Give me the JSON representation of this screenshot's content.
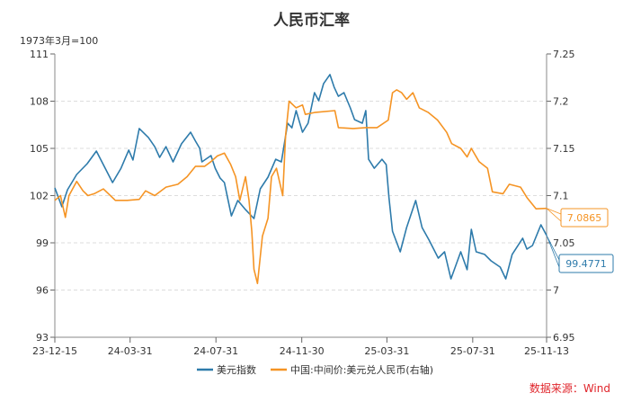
{
  "chart_data": {
    "type": "line",
    "title": "人民币汇率",
    "left_axis_label": "1973年3月=100",
    "source": "数据来源：Wind",
    "x_range": [
      "2023-12-15",
      "2025-11-13"
    ],
    "x_ticks": [
      "23-12-15",
      "24-03-31",
      "24-07-31",
      "24-11-30",
      "25-03-31",
      "25-07-31",
      "25-11-13"
    ],
    "x_tick_dates": [
      "2023-12-15",
      "2024-03-31",
      "2024-07-31",
      "2024-11-30",
      "2025-03-31",
      "2025-07-31",
      "2025-11-13"
    ],
    "left_ylim": [
      93,
      111
    ],
    "left_ticks": [
      "111",
      "108",
      "105",
      "102",
      "99",
      "96",
      "93"
    ],
    "right_ylim": [
      6.95,
      7.25
    ],
    "right_ticks": [
      "7.25",
      "7.2",
      "7.15",
      "7.1",
      "7.05",
      "7",
      "6.95"
    ],
    "grid": true,
    "legend_position": "bottom",
    "series": [
      {
        "name": "美元指数",
        "axis": "left",
        "color": "#2e7bab",
        "end_label": "99.4771",
        "points": [
          [
            "2023-12-15",
            102.49
          ],
          [
            "2023-12-25",
            101.29
          ],
          [
            "2024-01-02",
            102.37
          ],
          [
            "2024-01-15",
            103.34
          ],
          [
            "2024-01-30",
            104.03
          ],
          [
            "2024-02-12",
            104.83
          ],
          [
            "2024-03-06",
            102.83
          ],
          [
            "2024-03-18",
            103.74
          ],
          [
            "2024-03-29",
            104.89
          ],
          [
            "2024-04-04",
            104.26
          ],
          [
            "2024-04-13",
            106.26
          ],
          [
            "2024-04-26",
            105.69
          ],
          [
            "2024-05-05",
            105.11
          ],
          [
            "2024-05-12",
            104.43
          ],
          [
            "2024-05-21",
            105.11
          ],
          [
            "2024-05-31",
            104.14
          ],
          [
            "2024-06-12",
            105.29
          ],
          [
            "2024-06-25",
            106.03
          ],
          [
            "2024-07-02",
            105.46
          ],
          [
            "2024-07-08",
            105.0
          ],
          [
            "2024-07-11",
            104.14
          ],
          [
            "2024-07-24",
            104.54
          ],
          [
            "2024-07-30",
            103.74
          ],
          [
            "2024-08-06",
            103.11
          ],
          [
            "2024-08-12",
            102.83
          ],
          [
            "2024-08-22",
            100.71
          ],
          [
            "2024-08-31",
            101.69
          ],
          [
            "2024-09-11",
            101.11
          ],
          [
            "2024-09-23",
            100.54
          ],
          [
            "2024-10-02",
            102.43
          ],
          [
            "2024-10-13",
            103.17
          ],
          [
            "2024-10-24",
            104.31
          ],
          [
            "2024-11-01",
            104.14
          ],
          [
            "2024-11-10",
            106.6
          ],
          [
            "2024-11-16",
            106.31
          ],
          [
            "2024-11-22",
            107.4
          ],
          [
            "2024-12-01",
            106.03
          ],
          [
            "2024-12-09",
            106.6
          ],
          [
            "2024-12-18",
            108.54
          ],
          [
            "2024-12-24",
            108.03
          ],
          [
            "2024-12-31",
            109.11
          ],
          [
            "2025-01-09",
            109.69
          ],
          [
            "2025-01-15",
            108.89
          ],
          [
            "2025-01-21",
            108.31
          ],
          [
            "2025-01-29",
            108.54
          ],
          [
            "2025-02-07",
            107.57
          ],
          [
            "2025-02-13",
            106.83
          ],
          [
            "2025-02-24",
            106.6
          ],
          [
            "2025-03-01",
            107.4
          ],
          [
            "2025-03-05",
            104.31
          ],
          [
            "2025-03-13",
            103.74
          ],
          [
            "2025-03-24",
            104.31
          ],
          [
            "2025-03-30",
            103.97
          ],
          [
            "2025-04-03",
            101.86
          ],
          [
            "2025-04-08",
            99.74
          ],
          [
            "2025-04-19",
            98.43
          ],
          [
            "2025-04-28",
            99.97
          ],
          [
            "2025-05-11",
            101.69
          ],
          [
            "2025-05-20",
            99.97
          ],
          [
            "2025-05-30",
            99.17
          ],
          [
            "2025-06-12",
            98.03
          ],
          [
            "2025-06-21",
            98.43
          ],
          [
            "2025-06-30",
            96.71
          ],
          [
            "2025-07-14",
            98.43
          ],
          [
            "2025-07-23",
            97.29
          ],
          [
            "2025-07-29",
            99.86
          ],
          [
            "2025-08-05",
            98.43
          ],
          [
            "2025-08-17",
            98.26
          ],
          [
            "2025-08-26",
            97.86
          ],
          [
            "2025-09-08",
            97.46
          ],
          [
            "2025-09-16",
            96.71
          ],
          [
            "2025-09-25",
            98.26
          ],
          [
            "2025-10-10",
            99.29
          ],
          [
            "2025-10-16",
            98.6
          ],
          [
            "2025-10-24",
            98.83
          ],
          [
            "2025-11-05",
            100.14
          ],
          [
            "2025-11-13",
            99.4771
          ]
        ]
      },
      {
        "name": "中国:中间价:美元兑人民币(右轴)",
        "axis": "right",
        "color": "#f59424",
        "end_label": "7.0865",
        "points": [
          [
            "2023-12-15",
            7.095
          ],
          [
            "2023-12-23",
            7.1
          ],
          [
            "2023-12-30",
            7.077
          ],
          [
            "2024-01-04",
            7.1
          ],
          [
            "2024-01-15",
            7.115
          ],
          [
            "2024-01-24",
            7.105
          ],
          [
            "2024-01-31",
            7.1
          ],
          [
            "2024-02-09",
            7.102
          ],
          [
            "2024-02-22",
            7.107
          ],
          [
            "2024-03-10",
            7.095
          ],
          [
            "2024-03-27",
            7.095
          ],
          [
            "2024-04-13",
            7.096
          ],
          [
            "2024-04-22",
            7.105
          ],
          [
            "2024-05-05",
            7.1
          ],
          [
            "2024-05-21",
            7.109
          ],
          [
            "2024-06-07",
            7.112
          ],
          [
            "2024-06-20",
            7.12
          ],
          [
            "2024-07-02",
            7.131
          ],
          [
            "2024-07-15",
            7.131
          ],
          [
            "2024-07-24",
            7.136
          ],
          [
            "2024-08-02",
            7.142
          ],
          [
            "2024-08-12",
            7.145
          ],
          [
            "2024-08-21",
            7.133
          ],
          [
            "2024-08-28",
            7.12
          ],
          [
            "2024-09-03",
            7.095
          ],
          [
            "2024-09-11",
            7.12
          ],
          [
            "2024-09-16",
            7.095
          ],
          [
            "2024-09-20",
            7.062
          ],
          [
            "2024-09-23",
            7.022
          ],
          [
            "2024-09-28",
            7.007
          ],
          [
            "2024-10-05",
            7.057
          ],
          [
            "2024-10-13",
            7.076
          ],
          [
            "2024-10-18",
            7.12
          ],
          [
            "2024-10-25",
            7.129
          ],
          [
            "2024-11-03",
            7.1
          ],
          [
            "2024-11-07",
            7.164
          ],
          [
            "2024-11-12",
            7.2
          ],
          [
            "2024-11-22",
            7.193
          ],
          [
            "2024-12-01",
            7.196
          ],
          [
            "2024-12-05",
            7.186
          ],
          [
            "2024-12-18",
            7.188
          ],
          [
            "2025-01-16",
            7.19
          ],
          [
            "2025-01-21",
            7.172
          ],
          [
            "2025-02-11",
            7.171
          ],
          [
            "2025-03-01",
            7.172
          ],
          [
            "2025-03-17",
            7.172
          ],
          [
            "2025-04-02",
            7.18
          ],
          [
            "2025-04-08",
            7.209
          ],
          [
            "2025-04-14",
            7.212
          ],
          [
            "2025-04-21",
            7.209
          ],
          [
            "2025-04-28",
            7.202
          ],
          [
            "2025-05-07",
            7.209
          ],
          [
            "2025-05-16",
            7.193
          ],
          [
            "2025-05-29",
            7.188
          ],
          [
            "2025-06-11",
            7.18
          ],
          [
            "2025-06-24",
            7.167
          ],
          [
            "2025-07-01",
            7.155
          ],
          [
            "2025-07-14",
            7.15
          ],
          [
            "2025-07-23",
            7.141
          ],
          [
            "2025-07-29",
            7.15
          ],
          [
            "2025-08-09",
            7.136
          ],
          [
            "2025-08-21",
            7.129
          ],
          [
            "2025-08-28",
            7.104
          ],
          [
            "2025-09-12",
            7.102
          ],
          [
            "2025-09-21",
            7.112
          ],
          [
            "2025-10-07",
            7.109
          ],
          [
            "2025-10-16",
            7.098
          ],
          [
            "2025-10-29",
            7.086
          ],
          [
            "2025-11-13",
            7.0865
          ]
        ]
      }
    ]
  }
}
